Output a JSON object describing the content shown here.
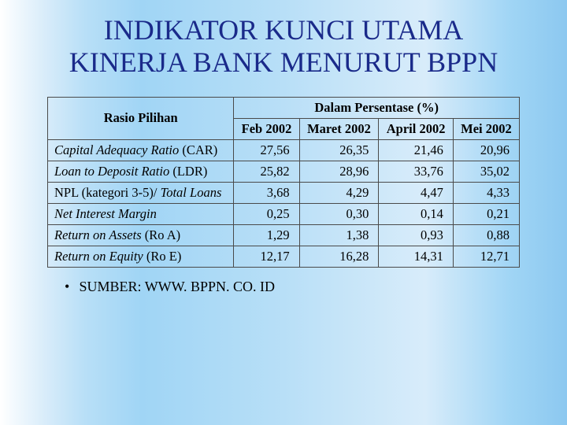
{
  "title": "INDIKATOR KUNCI UTAMA KINERJA BANK MENURUT BPPN",
  "table": {
    "rasio_header": "Rasio Pilihan",
    "group_header": "Dalam Persentase (%)",
    "columns": [
      "Feb 2002",
      "Maret 2002",
      "April 2002",
      "Mei 2002"
    ],
    "rows": [
      {
        "label_italic": "Capital Adequacy Ratio",
        "label_plain": " (CAR)",
        "values": [
          "27,56",
          "26,35",
          "21,46",
          "20,96"
        ]
      },
      {
        "label_italic": "Loan to Deposit Ratio",
        "label_plain": " (LDR)",
        "values": [
          "25,82",
          "28,96",
          "33,76",
          "35,02"
        ]
      },
      {
        "label_italic": "",
        "label_plain_pre": "NPL (kategori 3-5)/ ",
        "label_italic2": "Total Loans",
        "values": [
          "3,68",
          "4,29",
          "4,47",
          "4,33"
        ]
      },
      {
        "label_italic": "Net Interest Margin",
        "label_plain": "",
        "values": [
          "0,25",
          "0,30",
          "0,14",
          "0,21"
        ]
      },
      {
        "label_italic": "Return on Assets",
        "label_plain": " (Ro A)",
        "values": [
          "1,29",
          "1,38",
          "0,93",
          "0,88"
        ]
      },
      {
        "label_italic": "Return on Equity",
        "label_plain": " (Ro E)",
        "values": [
          "12,17",
          "16,28",
          "14,31",
          "12,71"
        ]
      }
    ]
  },
  "source": "SUMBER: WWW. BPPN. CO. ID"
}
